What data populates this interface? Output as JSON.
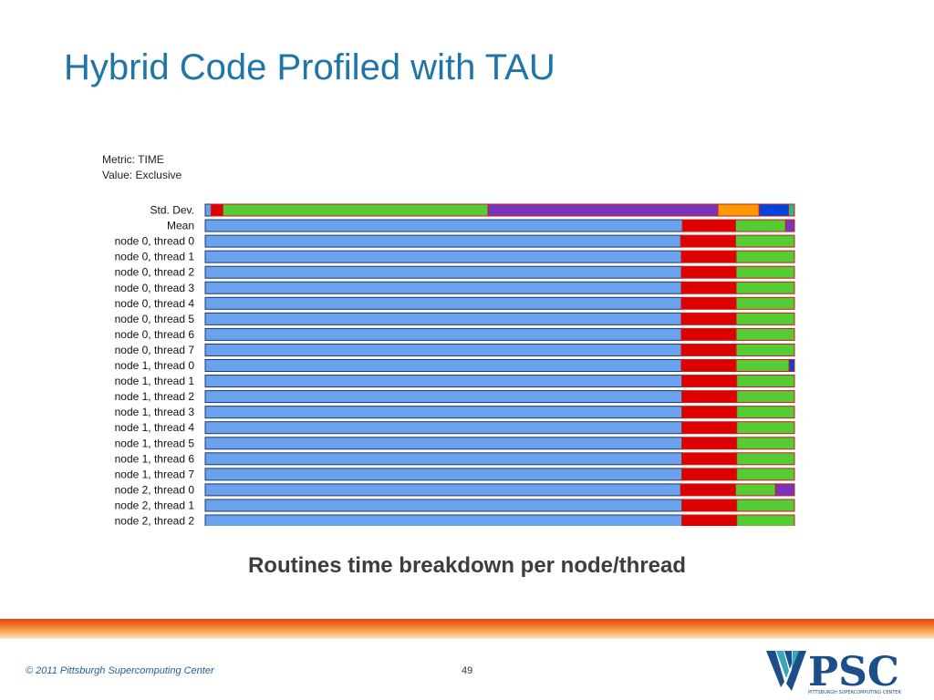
{
  "slide": {
    "title": "Hybrid Code Profiled with TAU",
    "caption": "Routines time breakdown per node/thread",
    "copyright": "© 2011 Pittsburgh Supercomputing Center",
    "page_number": "49",
    "logo_text": "PSC",
    "logo_subtext": "PITTSBURGH SUPERCOMPUTING CENTER"
  },
  "meta": {
    "metric": "Metric: TIME",
    "value": "Value: Exclusive"
  },
  "colors": {
    "title": "#1f75a8",
    "routines": [
      "#6aa2ee",
      "#dd0000",
      "#55cc33",
      "#7a33bb",
      "#ff9900",
      "#0044dd",
      "#2db58c"
    ],
    "segment_border": "#cc1a1a",
    "logo_blue": "#1c4f8a",
    "logo_teal": "#3aa6b9"
  },
  "chart_data": {
    "type": "bar",
    "orientation": "horizontal",
    "stacked": true,
    "metric": "TIME",
    "value_type": "Exclusive",
    "categories": [
      "Std. Dev.",
      "Mean",
      "node 0, thread 0",
      "node 0, thread 1",
      "node 0, thread 2",
      "node 0, thread 3",
      "node 0, thread 4",
      "node 0, thread 5",
      "node 0, thread 6",
      "node 0, thread 7",
      "node 1, thread 0",
      "node 1, thread 1",
      "node 1, thread 2",
      "node 1, thread 3",
      "node 1, thread 4",
      "node 1, thread 5",
      "node 1, thread 6",
      "node 1, thread 7",
      "node 2, thread 0",
      "node 2, thread 1",
      "node 2, thread 2"
    ],
    "segments": [
      [
        0.01,
        0.02,
        0.45,
        0.39,
        0.07,
        0.05,
        0.01
      ],
      [
        0.81,
        0.09,
        0.085,
        0.015,
        0.0,
        0.0,
        0.0
      ],
      [
        0.807,
        0.093,
        0.1,
        0.0,
        0.0,
        0.0,
        0.0
      ],
      [
        0.808,
        0.093,
        0.099,
        0.0,
        0.0,
        0.0,
        0.0
      ],
      [
        0.808,
        0.093,
        0.099,
        0.0,
        0.0,
        0.0,
        0.0
      ],
      [
        0.808,
        0.093,
        0.099,
        0.0,
        0.0,
        0.0,
        0.0
      ],
      [
        0.808,
        0.093,
        0.099,
        0.0,
        0.0,
        0.0,
        0.0
      ],
      [
        0.808,
        0.093,
        0.099,
        0.0,
        0.0,
        0.0,
        0.0
      ],
      [
        0.808,
        0.093,
        0.099,
        0.0,
        0.0,
        0.0,
        0.0
      ],
      [
        0.808,
        0.093,
        0.099,
        0.0,
        0.0,
        0.0,
        0.0
      ],
      [
        0.808,
        0.093,
        0.09,
        0.0,
        0.0,
        0.009,
        0.0
      ],
      [
        0.809,
        0.093,
        0.098,
        0.0,
        0.0,
        0.0,
        0.0
      ],
      [
        0.809,
        0.093,
        0.098,
        0.0,
        0.0,
        0.0,
        0.0
      ],
      [
        0.809,
        0.093,
        0.098,
        0.0,
        0.0,
        0.0,
        0.0
      ],
      [
        0.809,
        0.093,
        0.098,
        0.0,
        0.0,
        0.0,
        0.0
      ],
      [
        0.809,
        0.093,
        0.098,
        0.0,
        0.0,
        0.0,
        0.0
      ],
      [
        0.809,
        0.093,
        0.098,
        0.0,
        0.0,
        0.0,
        0.0
      ],
      [
        0.809,
        0.093,
        0.098,
        0.0,
        0.0,
        0.0,
        0.0
      ],
      [
        0.807,
        0.093,
        0.068,
        0.032,
        0.0,
        0.0,
        0.0
      ],
      [
        0.809,
        0.093,
        0.098,
        0.0,
        0.0,
        0.0,
        0.0
      ],
      [
        0.809,
        0.093,
        0.098,
        0.0,
        0.0,
        0.0,
        0.0
      ]
    ],
    "segment_order_note": "",
    "title": "",
    "xlabel": "",
    "ylabel": ""
  }
}
